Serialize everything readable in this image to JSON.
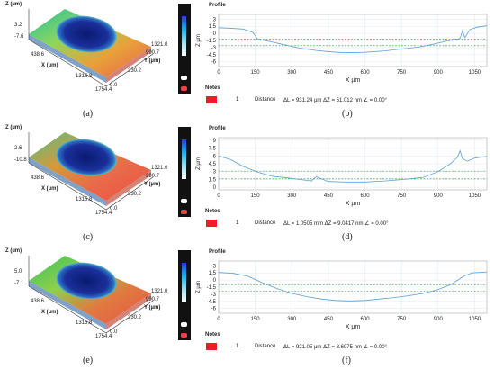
{
  "panels": [
    {
      "id": "a",
      "caption_left": "(a)",
      "caption_right": "(b)",
      "surface": {
        "z_label": "Z (µm)",
        "z_top": "3.2",
        "z_bot": "-7.6",
        "x_label": "X (µm)",
        "y_label": "Y (µm)",
        "x_ticks": [
          "438.6",
          "1315.8",
          "1754.4"
        ],
        "y_ticks": [
          "1321.0",
          "990.7",
          "330.2",
          "0.0"
        ]
      },
      "notes": {
        "title": "Notes",
        "num": "1",
        "label": "Distance",
        "text": "ΔL = 931.24 µm ΔZ = 51.012 nm ∠ = 0.00°"
      }
    },
    {
      "id": "c",
      "caption_left": "(c)",
      "caption_right": "(d)",
      "surface": {
        "z_label": "Z (µm)",
        "z_top": "2.6",
        "z_bot": "-10.8",
        "x_label": "X (µm)",
        "y_label": "Y (µm)",
        "x_ticks": [
          "438.6",
          "1315.8",
          "1754.4"
        ],
        "y_ticks": [
          "1321.0",
          "990.7",
          "330.2",
          "0.0"
        ]
      },
      "notes": {
        "title": "Notes",
        "num": "1",
        "label": "Distance",
        "text": "ΔL = 1.0505 mm ΔZ = 9.0417 nm ∠ = 0.00°"
      }
    },
    {
      "id": "e",
      "caption_left": "(e)",
      "caption_right": "(f)",
      "surface": {
        "z_label": "Z (µm)",
        "z_top": "5.0",
        "z_bot": "-7.1",
        "x_label": "X (µm)",
        "y_label": "Y (µm)",
        "x_ticks": [
          "438.6",
          "1315.8",
          "1754.4"
        ],
        "y_ticks": [
          "1321.0",
          "990.7",
          "330.2",
          "0.0"
        ]
      },
      "notes": {
        "title": "Notes",
        "num": "1",
        "label": "Distance",
        "text": "ΔL = 921.05 µm ΔZ = 8.6975 nm ∠ = 0.00°"
      }
    }
  ],
  "chart_data": [
    {
      "type": "line",
      "title": "Profile",
      "xlabel": "X µm",
      "ylabel": "Z µm",
      "xlim": [
        0,
        1100
      ],
      "ylim": [
        -7,
        4
      ],
      "x_ticks": [
        0,
        150,
        300,
        450,
        600,
        750,
        900,
        1050
      ],
      "y_ticks": [
        3,
        1.5,
        0,
        -1.5,
        -3,
        -4.5,
        -6
      ],
      "y_tick_labels": [
        "3",
        "1.5",
        "0",
        "-1.5",
        "-3",
        "-4.5",
        "-6"
      ],
      "ref_lines": [
        -1.2,
        -2.6
      ],
      "x": [
        0,
        40,
        100,
        140,
        160,
        200,
        260,
        330,
        400,
        460,
        520,
        600,
        680,
        750,
        820,
        880,
        920,
        960,
        990,
        1000,
        1010,
        1030,
        1060,
        1100
      ],
      "y": [
        1.2,
        1.1,
        0.9,
        0.2,
        -1.2,
        -1.6,
        -2.3,
        -3.1,
        -3.6,
        -3.9,
        -4.1,
        -4.0,
        -3.7,
        -3.3,
        -2.9,
        -2.3,
        -1.8,
        -1.4,
        -1.1,
        0.6,
        -0.9,
        0.8,
        1.3,
        1.6
      ]
    },
    {
      "type": "line",
      "title": "Profile",
      "xlabel": "X µm",
      "ylabel": "Z µm",
      "xlim": [
        0,
        1100
      ],
      "ylim": [
        -0.5,
        9.5
      ],
      "x_ticks": [
        0,
        150,
        300,
        450,
        600,
        750,
        900,
        1050
      ],
      "y_ticks": [
        9,
        7.5,
        6,
        4.5,
        3,
        1.5,
        0
      ],
      "y_tick_labels": [
        "9",
        "7.5",
        "6",
        "4.5",
        "3",
        "1.5",
        "0"
      ],
      "ref_lines": [
        3.1,
        1.6
      ],
      "x": [
        0,
        50,
        100,
        160,
        220,
        280,
        330,
        380,
        400,
        450,
        520,
        600,
        680,
        760,
        840,
        900,
        950,
        980,
        990,
        1000,
        1020,
        1050,
        1100
      ],
      "y": [
        6.0,
        5.3,
        4.0,
        2.9,
        2.1,
        1.8,
        1.5,
        1.2,
        2.0,
        1.1,
        1.0,
        1.0,
        1.2,
        1.5,
        1.9,
        3.0,
        4.5,
        5.8,
        7.0,
        5.5,
        5.0,
        5.6,
        5.9
      ]
    },
    {
      "type": "line",
      "title": "Profile",
      "xlabel": "X µm",
      "ylabel": "Z µm",
      "xlim": [
        0,
        1100
      ],
      "ylim": [
        -7,
        4
      ],
      "x_ticks": [
        0,
        150,
        300,
        450,
        600,
        750,
        900,
        1050
      ],
      "y_ticks": [
        3,
        1.5,
        0,
        -1.5,
        -3,
        -4.5,
        -6
      ],
      "y_tick_labels": [
        "3",
        "1.5",
        "0",
        "-1.5",
        "-3",
        "-4.5",
        "-6"
      ],
      "ref_lines": [
        -1.0,
        -2.4
      ],
      "x": [
        0,
        60,
        120,
        180,
        240,
        300,
        360,
        420,
        480,
        540,
        600,
        660,
        720,
        780,
        840,
        900,
        950,
        990,
        1010,
        1040,
        1100
      ],
      "y": [
        1.6,
        1.4,
        0.8,
        -0.6,
        -1.8,
        -2.8,
        -3.5,
        -4.0,
        -4.3,
        -4.4,
        -4.3,
        -4.0,
        -3.7,
        -3.3,
        -2.8,
        -2.0,
        -1.0,
        0.3,
        0.9,
        1.5,
        1.7
      ]
    }
  ]
}
